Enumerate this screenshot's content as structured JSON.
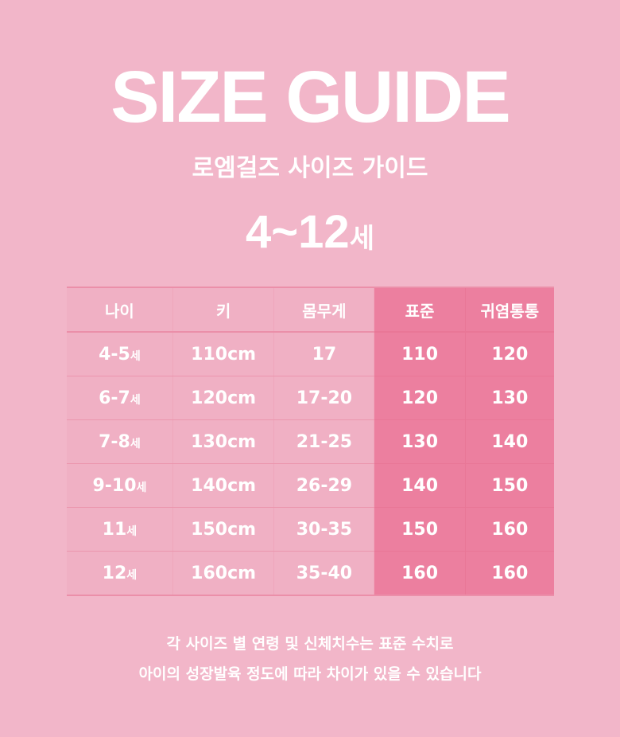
{
  "title": "SIZE GUIDE",
  "subtitle": "로엠걸즈 사이즈 가이드",
  "age_range": {
    "value": "4~12",
    "unit": "세"
  },
  "table": {
    "headers": [
      "나이",
      "키",
      "몸무게",
      "표준",
      "귀염통통"
    ],
    "rows": [
      {
        "age": "4-5",
        "age_suffix": "세",
        "height": "110cm",
        "weight": "17",
        "standard": "110",
        "chubby": "120"
      },
      {
        "age": "6-7",
        "age_suffix": "세",
        "height": "120cm",
        "weight": "17-20",
        "standard": "120",
        "chubby": "130"
      },
      {
        "age": "7-8",
        "age_suffix": "세",
        "height": "130cm",
        "weight": "21-25",
        "standard": "130",
        "chubby": "140"
      },
      {
        "age": "9-10",
        "age_suffix": "세",
        "height": "140cm",
        "weight": "26-29",
        "standard": "140",
        "chubby": "150"
      },
      {
        "age": "11",
        "age_suffix": "세",
        "height": "150cm",
        "weight": "30-35",
        "standard": "150",
        "chubby": "160"
      },
      {
        "age": "12",
        "age_suffix": "세",
        "height": "160cm",
        "weight": "35-40",
        "standard": "160",
        "chubby": "160"
      }
    ]
  },
  "note": [
    "각 사이즈 별 연령 및 신체치수는 표준 수치로",
    "아이의 성장발육 정도에 따라 차이가 있을 수 있습니다"
  ],
  "colors": {
    "background": "#f2b6c9",
    "highlight": "#ec7f9f",
    "text": "#ffffff"
  }
}
